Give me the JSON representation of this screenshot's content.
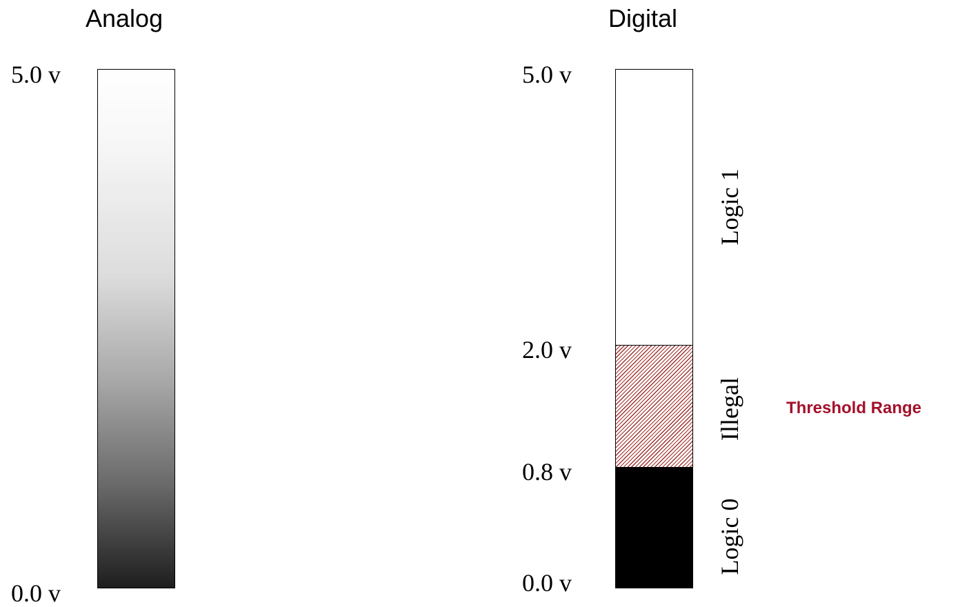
{
  "analog": {
    "title": "Analog",
    "top_label": "5.0 v",
    "bottom_label": "0.0 v"
  },
  "digital": {
    "title": "Digital",
    "labels": {
      "v5": "5.0 v",
      "v2": "2.0 v",
      "v08": "0.8 v",
      "v0": "0.0 v"
    },
    "regions": {
      "logic1": "Logic 1",
      "illegal": "Illegal",
      "logic0": "Logic 0"
    },
    "threshold_label": "Threshold Range"
  },
  "colors": {
    "hatch": "#a0302b",
    "threshold_text": "#a3112b",
    "logic0_fill": "#000000"
  }
}
